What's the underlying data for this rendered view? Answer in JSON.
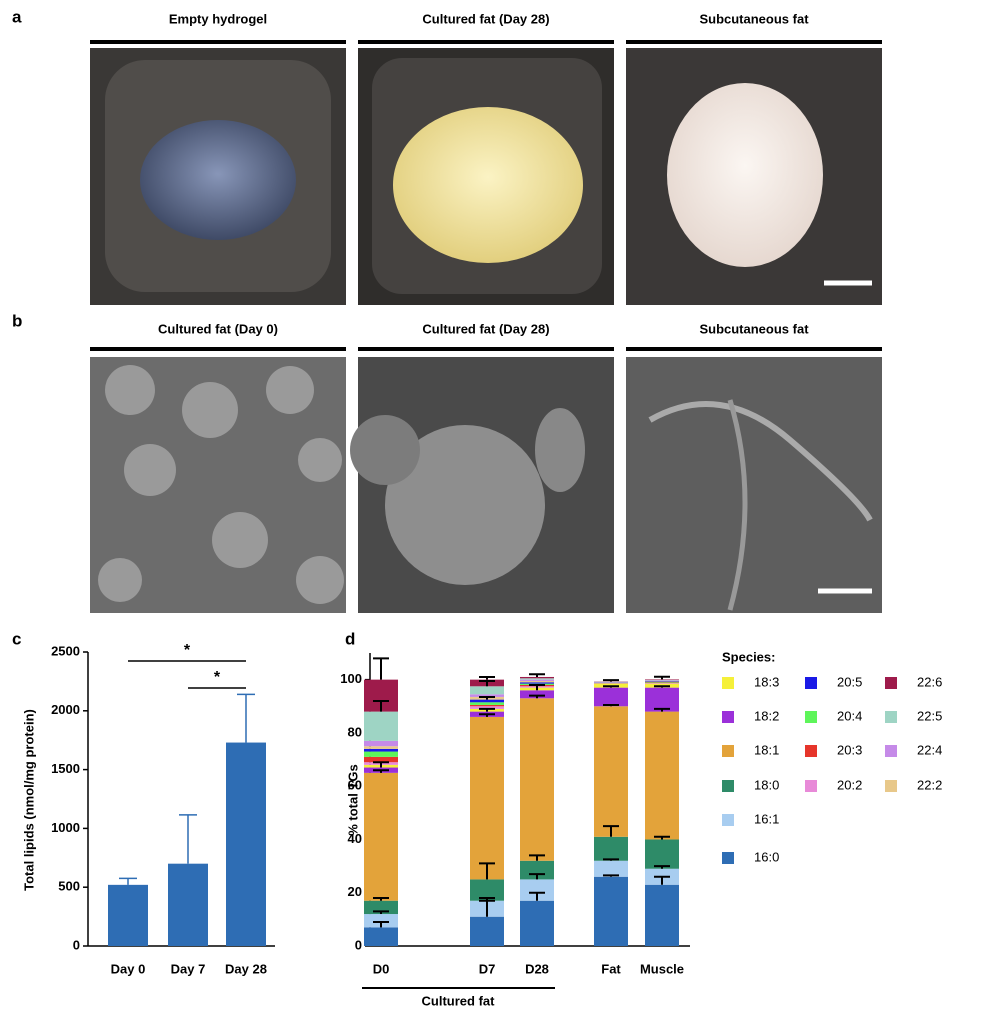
{
  "panels": {
    "a": {
      "letter": "a",
      "titles": [
        "Empty hydrogel",
        "Cultured fat (Day 28)",
        "Subcutaneous fat"
      ]
    },
    "b": {
      "letter": "b",
      "titles": [
        "Cultured fat (Day 0)",
        "Cultured fat (Day 28)",
        "Subcutaneous fat"
      ]
    }
  },
  "chart_data": [
    {
      "type": "bar",
      "label": "c",
      "ylabel": "Total lipids (nmol/mg protein)",
      "categories": [
        "Day 0",
        "Day 7",
        "Day 28"
      ],
      "values": [
        520,
        700,
        1730
      ],
      "errors": [
        55,
        415,
        410
      ],
      "color": "#2e6db4",
      "ylim": [
        0,
        2500
      ],
      "yticks": [
        0,
        500,
        1000,
        1500,
        2000,
        2500
      ],
      "annotations": [
        "*",
        "*"
      ]
    },
    {
      "type": "stacked_bar",
      "label": "d",
      "ylabel": "% total TGs",
      "categories": [
        "D0",
        "D7",
        "D28",
        "Fat",
        "Muscle"
      ],
      "group_label": "Cultured fat",
      "legend_title": "Species:",
      "ylim": [
        0,
        110
      ],
      "yticks": [
        0,
        20,
        40,
        60,
        80,
        100
      ],
      "series": [
        {
          "name": "16:0",
          "color": "#2e6db4",
          "values": [
            7,
            11,
            17,
            26,
            23
          ],
          "errors": [
            2,
            6,
            3,
            0.5,
            3
          ]
        },
        {
          "name": "16:1",
          "color": "#a8cdf0",
          "values": [
            5,
            6,
            8,
            6,
            6
          ],
          "errors": [
            1,
            1,
            2,
            0.5,
            1
          ]
        },
        {
          "name": "18:0",
          "color": "#2e8b68",
          "values": [
            5,
            8,
            7,
            9,
            11
          ],
          "errors": [
            1,
            6,
            2,
            4,
            1
          ]
        },
        {
          "name": "18:1",
          "color": "#e3a33a",
          "values": [
            48,
            61,
            61,
            49,
            48
          ],
          "errors": [
            1,
            1,
            1,
            0.5,
            1
          ]
        },
        {
          "name": "18:2",
          "color": "#9b30d9",
          "values": [
            2,
            2,
            3,
            7,
            9
          ],
          "errors": [
            2,
            1,
            2,
            0.5,
            0.5
          ]
        },
        {
          "name": "18:3",
          "color": "#f5f03a",
          "values": [
            1,
            1,
            1,
            1.5,
            1.5
          ],
          "errors": [
            0,
            0,
            0,
            0,
            0
          ]
        },
        {
          "name": "20:2",
          "color": "#e88ad8",
          "values": [
            1,
            1,
            0.5,
            0.1,
            0.2
          ],
          "errors": [
            0,
            0,
            0,
            0,
            0
          ]
        },
        {
          "name": "20:3",
          "color": "#e6352b",
          "values": [
            2,
            0.5,
            0.5,
            0.1,
            0.2
          ],
          "errors": [
            0,
            0,
            0,
            0,
            0
          ]
        },
        {
          "name": "20:4",
          "color": "#5ef55a",
          "values": [
            2,
            1,
            0.5,
            0.1,
            0.2
          ],
          "errors": [
            0,
            0,
            0,
            0,
            0
          ]
        },
        {
          "name": "20:5",
          "color": "#1a1ae6",
          "values": [
            1,
            1,
            0.5,
            0.1,
            0.2
          ],
          "errors": [
            0,
            1,
            0,
            0,
            0
          ]
        },
        {
          "name": "22:2",
          "color": "#e8c88a",
          "values": [
            1,
            1,
            0.5,
            0.1,
            0.2
          ],
          "errors": [
            0,
            0,
            0,
            0,
            0
          ]
        },
        {
          "name": "22:4",
          "color": "#c58ae8",
          "values": [
            2,
            1,
            0.5,
            0.1,
            0.2
          ],
          "errors": [
            0,
            0,
            0,
            0,
            0
          ]
        },
        {
          "name": "22:5",
          "color": "#9ed4c4",
          "values": [
            11,
            3,
            0.5,
            0.1,
            0.2
          ],
          "errors": [
            4,
            2,
            0,
            0,
            0
          ]
        },
        {
          "name": "22:6",
          "color": "#9e1b4b",
          "values": [
            12,
            2.5,
            0.5,
            0.1,
            0.2
          ],
          "errors": [
            8,
            1,
            1,
            0.5,
            1
          ]
        }
      ]
    }
  ]
}
